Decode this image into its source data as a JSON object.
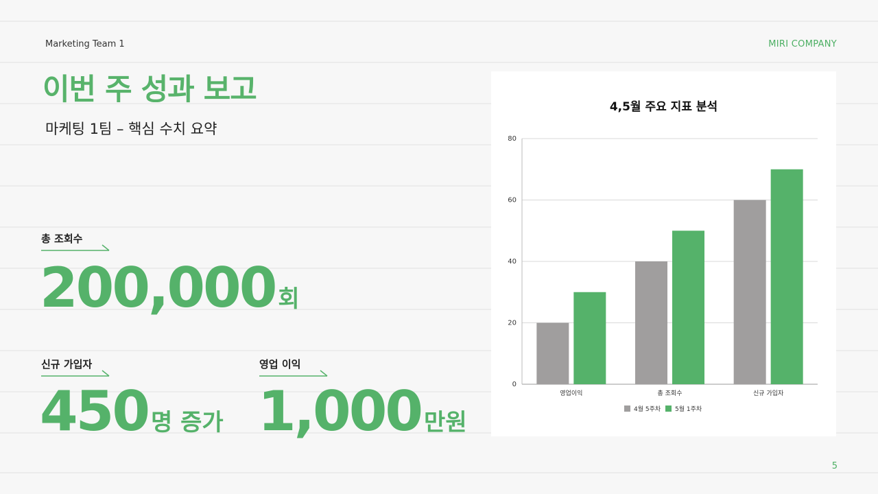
{
  "header": {
    "team": "Marketing Team 1",
    "company": "MIRI COMPANY"
  },
  "title": "이번 주 성과 보고",
  "subtitle": "마케팅 1팀  – 핵심 수치 요약",
  "metrics": {
    "views": {
      "label": "총 조회수",
      "value": "200,000",
      "unit": "회"
    },
    "signups": {
      "label": "신규 가입자",
      "value": "450",
      "unit": "명 증가"
    },
    "profit": {
      "label": "영업 이익",
      "value": "1,000",
      "unit": "만원"
    }
  },
  "colors": {
    "accent": "#55b26a",
    "gray_series": "#a09e9e",
    "green_series": "#55b26a"
  },
  "chart_data": {
    "type": "bar",
    "title": "4,5월 주요 지표 분석",
    "categories": [
      "영업이익",
      "총 조회수",
      "신규 가입자"
    ],
    "series": [
      {
        "name": "4월 5주차",
        "values": [
          20,
          40,
          60
        ],
        "color": "#a09e9e"
      },
      {
        "name": "5월 1주차",
        "values": [
          30,
          50,
          70
        ],
        "color": "#55b26a"
      }
    ],
    "ylim": [
      0,
      80
    ],
    "yticks": [
      0,
      20,
      40,
      60,
      80
    ],
    "grid": true,
    "legend": "bottom"
  },
  "page_number": "5"
}
